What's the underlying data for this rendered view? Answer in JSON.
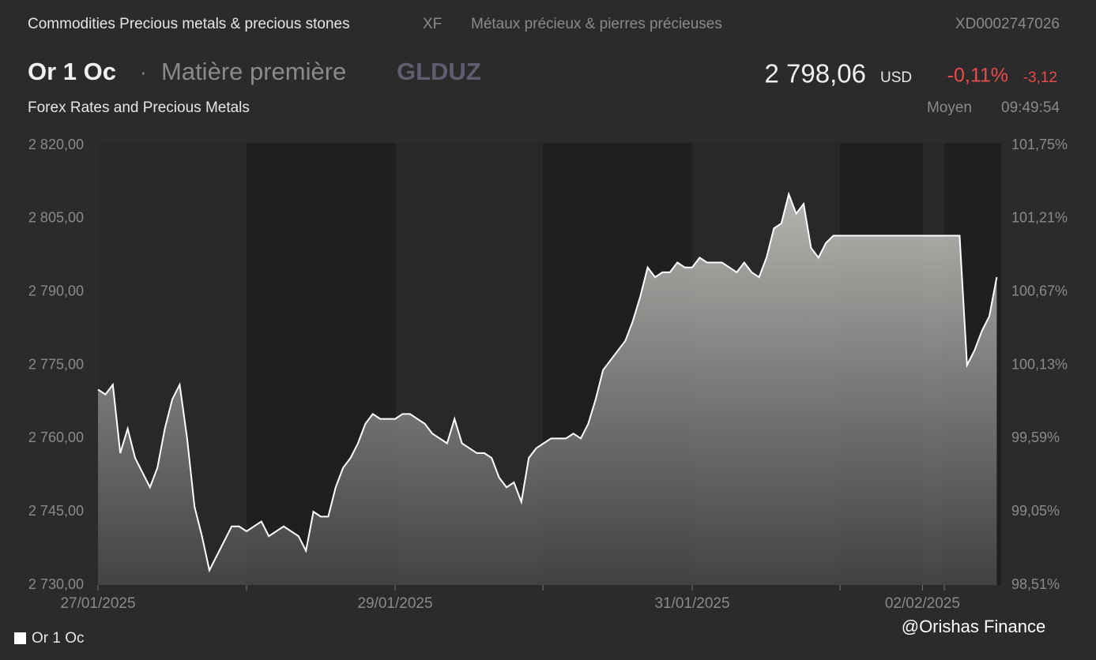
{
  "header": {
    "breadcrumb": "Commodities Precious metals & precious stones",
    "market": "XF",
    "category_fr": "Métaux précieux & pierres précieuses",
    "isin": "XD0002747026",
    "name": "Or 1 Oc",
    "separator": "·",
    "asset_type": "Matière première",
    "ticker": "GLDUZ",
    "price": "2 798,06",
    "currency": "USD",
    "change_pct": "-0,11%",
    "change_abs": "-3,12",
    "source": "Forex Rates and Precious Metals",
    "price_type": "Moyen",
    "time": "09:49:54"
  },
  "chart_data": {
    "type": "area",
    "categories": [
      "27/01/2025",
      null,
      null,
      null,
      null,
      null,
      null,
      null,
      null,
      null,
      null,
      null,
      null,
      null,
      null,
      null,
      null,
      null,
      null,
      null,
      null,
      null,
      null,
      null,
      null,
      null,
      null,
      null,
      null,
      null,
      null,
      null,
      null,
      null,
      null,
      null,
      null,
      null,
      null,
      null,
      "29/01/2025",
      null,
      null,
      null,
      null,
      null,
      null,
      null,
      null,
      null,
      null,
      null,
      null,
      null,
      null,
      null,
      null,
      null,
      null,
      null,
      null,
      null,
      null,
      null,
      null,
      null,
      null,
      null,
      null,
      null,
      null,
      null,
      null,
      null,
      null,
      null,
      null,
      null,
      null,
      null,
      "31/01/2025",
      null,
      null,
      null,
      null,
      null,
      null,
      null,
      null,
      null,
      null,
      null,
      null,
      null,
      null,
      null,
      null,
      null,
      null,
      null,
      null,
      null,
      null,
      null,
      null,
      null,
      null,
      null,
      null,
      null,
      null,
      "02/02/2025",
      null,
      null,
      null,
      null,
      null,
      null,
      null,
      null,
      null,
      null
    ],
    "series": [
      {
        "name": "Or 1 Oc",
        "color": "#ffffff",
        "values": [
          2770,
          2769,
          2771,
          2757,
          2762,
          2756,
          2753,
          2750,
          2754,
          2762,
          2768,
          2771,
          2760,
          2746,
          2740,
          2733,
          2736,
          2739,
          2742,
          2742,
          2741,
          2742,
          2743,
          2740,
          2741,
          2742,
          2741,
          2740,
          2737,
          2745,
          2744,
          2744,
          2750,
          2754,
          2756,
          2759,
          2763,
          2765,
          2764,
          2764,
          2764,
          2765,
          2765,
          2764,
          2763,
          2761,
          2760,
          2759,
          2764,
          2759,
          2758,
          2757,
          2757,
          2756,
          2752,
          2750,
          2751,
          2747,
          2756,
          2758,
          2759,
          2760,
          2760,
          2760,
          2761,
          2760,
          2763,
          2768,
          2774,
          2776,
          2778,
          2780,
          2784,
          2789,
          2795,
          2793,
          2794,
          2794,
          2796,
          2795,
          2795,
          2797,
          2796,
          2796,
          2796,
          2795,
          2794,
          2796,
          2794,
          2793,
          2797,
          2803,
          2804,
          2810,
          2806,
          2808,
          2799,
          2797,
          2800,
          2801.5,
          2801.5,
          2801.5,
          2801.5,
          2801.5,
          2801.5,
          2801.5,
          2801.5,
          2801.5,
          2801.5,
          2801.5,
          2801.5,
          2801.5,
          2801.5,
          2801.5,
          2801.5,
          2801.5,
          2801.5,
          2775,
          2778,
          2782,
          2785,
          2793
        ]
      }
    ],
    "ylim": [
      2730,
      2820
    ],
    "yticks": [
      {
        "value": 2730,
        "label": "2 730,00"
      },
      {
        "value": 2745,
        "label": "2 745,00"
      },
      {
        "value": 2760,
        "label": "2 760,00"
      },
      {
        "value": 2775,
        "label": "2 775,00"
      },
      {
        "value": 2790,
        "label": "2 790,00"
      },
      {
        "value": 2805,
        "label": "2 805,00"
      },
      {
        "value": 2820,
        "label": "2 820,00"
      }
    ],
    "y2lim": [
      98.51,
      101.75
    ],
    "y2ticks": [
      {
        "value": 98.51,
        "label": "98,51%"
      },
      {
        "value": 99.05,
        "label": "99,05%"
      },
      {
        "value": 99.59,
        "label": "99,59%"
      },
      {
        "value": 100.13,
        "label": "100,13%"
      },
      {
        "value": 100.67,
        "label": "100,67%"
      },
      {
        "value": 101.21,
        "label": "101,21%"
      },
      {
        "value": 101.75,
        "label": "101,75%"
      }
    ],
    "watermark": "@Orishas Finance"
  }
}
